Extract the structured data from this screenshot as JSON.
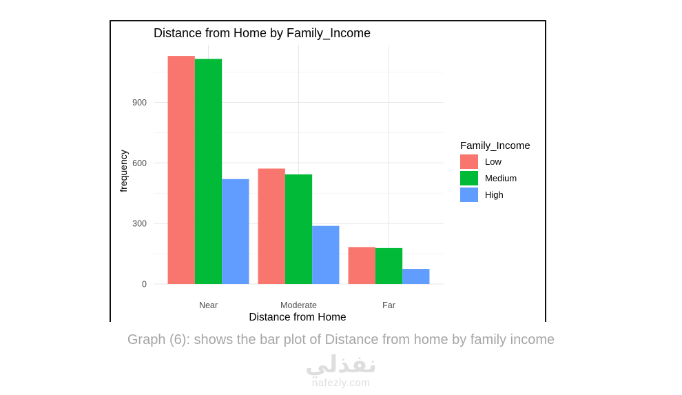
{
  "chart_data": {
    "type": "bar",
    "title": "Distance from Home by Family_Income",
    "xlabel": "Distance from Home",
    "ylabel": "frequency",
    "categories": [
      "Near",
      "Moderate",
      "Far"
    ],
    "series": [
      {
        "name": "Low",
        "values": [
          1130,
          572,
          183
        ],
        "color": "#F8766D"
      },
      {
        "name": "Medium",
        "values": [
          1115,
          543,
          178
        ],
        "color": "#00BA38"
      },
      {
        "name": "High",
        "values": [
          520,
          288,
          75
        ],
        "color": "#619CFF"
      }
    ],
    "yticks": [
      0,
      300,
      600,
      900
    ],
    "ylim": [
      0,
      1185
    ],
    "legend_title": "Family_Income",
    "legend_position": "right",
    "grid": true
  },
  "caption": "Graph (6): shows the bar plot of Distance from home by family income",
  "watermark": {
    "arabic": "نفذلي",
    "url": "nafezly.com"
  }
}
